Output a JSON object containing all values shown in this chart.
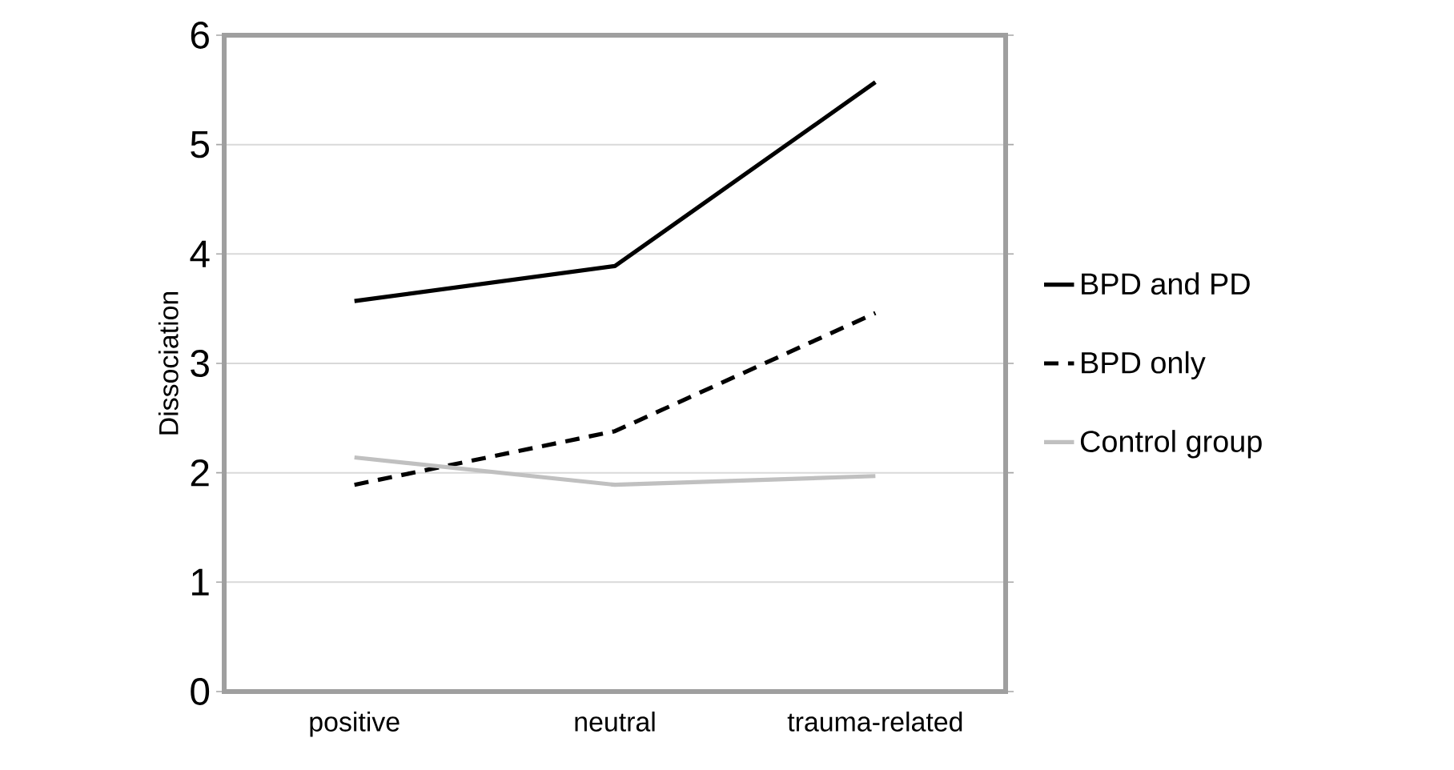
{
  "chart_data": {
    "type": "line",
    "ylabel": "Dissociation",
    "categories": [
      "positive",
      "neutral",
      "trauma-related"
    ],
    "series": [
      {
        "name": "BPD and PD",
        "color": "#000000",
        "line_style": "solid",
        "values": [
          3.57,
          3.89,
          5.57
        ]
      },
      {
        "name": "BPD only",
        "color": "#000000",
        "line_style": "dashed",
        "values": [
          1.89,
          2.38,
          3.46
        ]
      },
      {
        "name": "Control group",
        "color": "#c0c0c0",
        "line_style": "solid",
        "values": [
          2.14,
          1.89,
          1.97
        ]
      }
    ],
    "ylim": [
      0,
      6
    ],
    "yticks": [
      0,
      1,
      2,
      3,
      4,
      5,
      6
    ],
    "grid": "y",
    "legend": "right",
    "marker": "none"
  }
}
